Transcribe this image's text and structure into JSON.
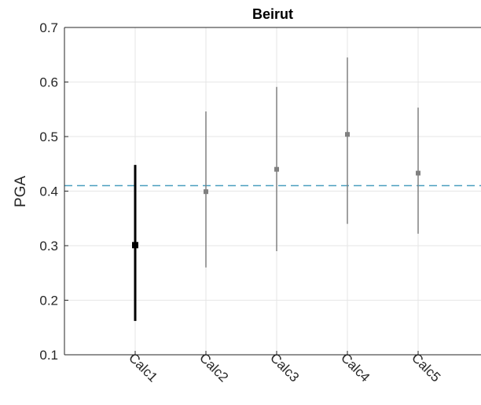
{
  "chart_data": {
    "type": "errorbar",
    "title": "Beirut",
    "xlabel": "",
    "ylabel": "PGA",
    "categories": [
      "Calc1",
      "Calc2",
      "Calc3",
      "Calc4",
      "Calc5"
    ],
    "values": [
      0.301,
      0.399,
      0.44,
      0.504,
      0.433
    ],
    "lower": [
      0.162,
      0.26,
      0.29,
      0.34,
      0.322
    ],
    "upper": [
      0.448,
      0.546,
      0.591,
      0.645,
      0.553
    ],
    "highlight_index": 0,
    "reference_line": 0.41,
    "ylim": [
      0.1,
      0.7
    ],
    "yticks": [
      "0.1",
      "0.2",
      "0.3",
      "0.4",
      "0.5",
      "0.6",
      "0.7"
    ],
    "grid": true,
    "colors": {
      "highlight": "#000000",
      "other": "#808080",
      "reference": "#4a9fbf",
      "grid": "#e6e6e6",
      "axis": "#262626"
    }
  }
}
